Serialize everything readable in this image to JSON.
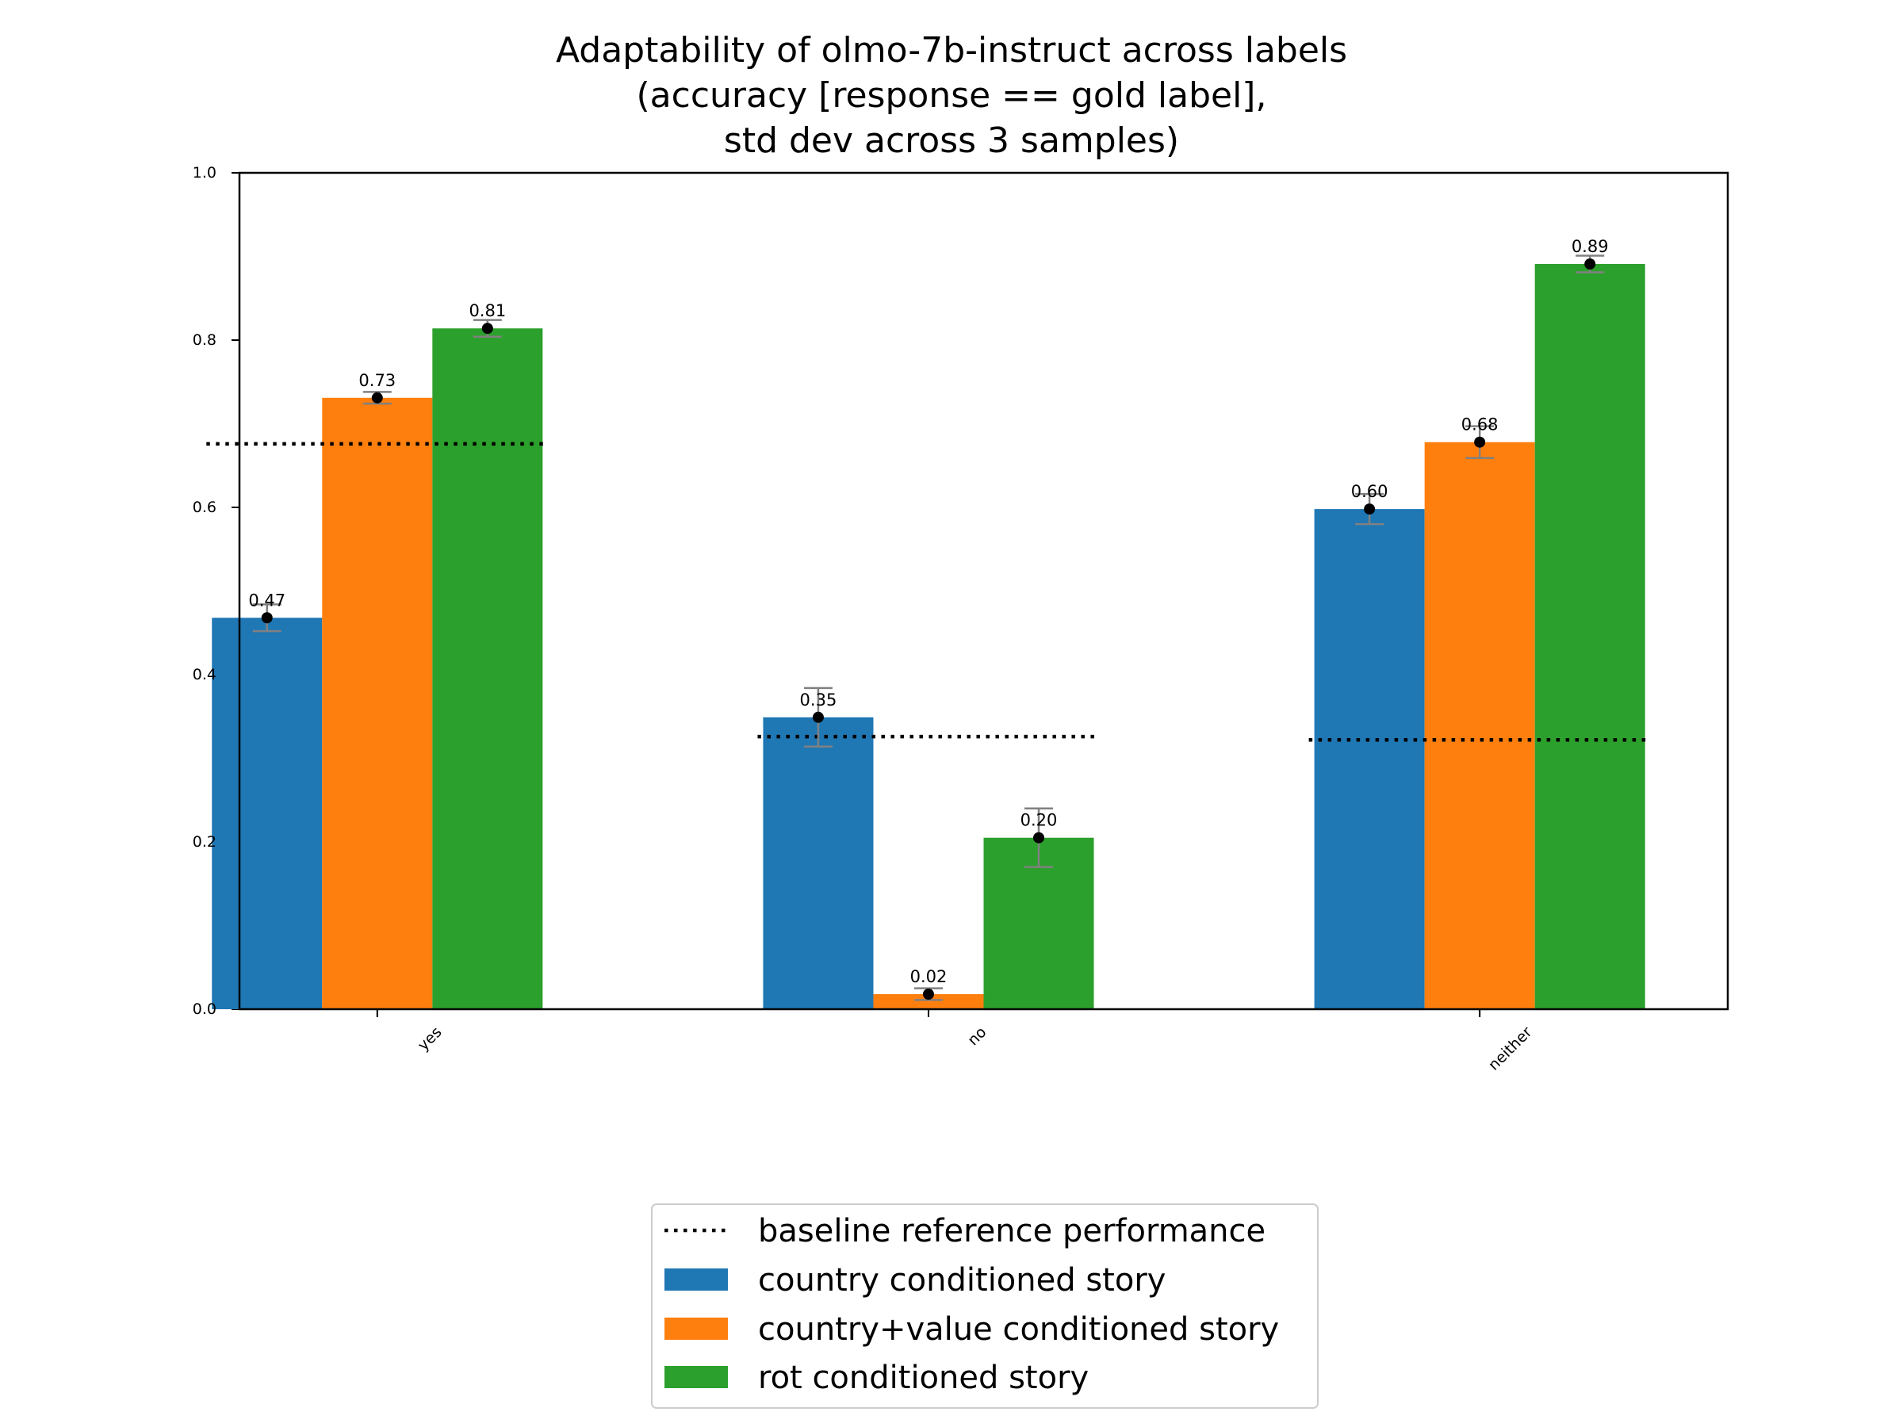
{
  "chart_data": {
    "type": "bar",
    "title": [
      "Adaptability of olmo-7b-instruct across labels",
      "(accuracy [response == gold label],",
      "std dev across 3 samples)"
    ],
    "xlabel": "",
    "ylabel": "",
    "ylim": [
      0,
      1.0
    ],
    "yticks": [
      "0.0",
      "0.2",
      "0.4",
      "0.6",
      "0.8",
      "1.0"
    ],
    "categories": [
      "yes",
      "no",
      "neither"
    ],
    "series": [
      {
        "name": "country conditioned story",
        "color": "#1f77b4",
        "values": [
          0.468,
          0.349,
          0.598
        ],
        "errors": [
          0.016,
          0.035,
          0.018
        ],
        "labels": [
          "0.47",
          "0.35",
          "0.60"
        ]
      },
      {
        "name": "country+value conditioned story",
        "color": "#ff7f0e",
        "values": [
          0.731,
          0.018,
          0.678
        ],
        "errors": [
          0.007,
          0.007,
          0.019
        ],
        "labels": [
          "0.73",
          "0.02",
          "0.68"
        ]
      },
      {
        "name": "rot conditioned story",
        "color": "#2ca02c",
        "values": [
          0.814,
          0.205,
          0.891
        ],
        "errors": [
          0.01,
          0.035,
          0.01
        ],
        "labels": [
          "0.81",
          "0.20",
          "0.89"
        ]
      }
    ],
    "baseline": {
      "name": "baseline reference performance",
      "values": [
        0.676,
        0.326,
        0.322
      ]
    },
    "legend_position": "below chart, center"
  }
}
